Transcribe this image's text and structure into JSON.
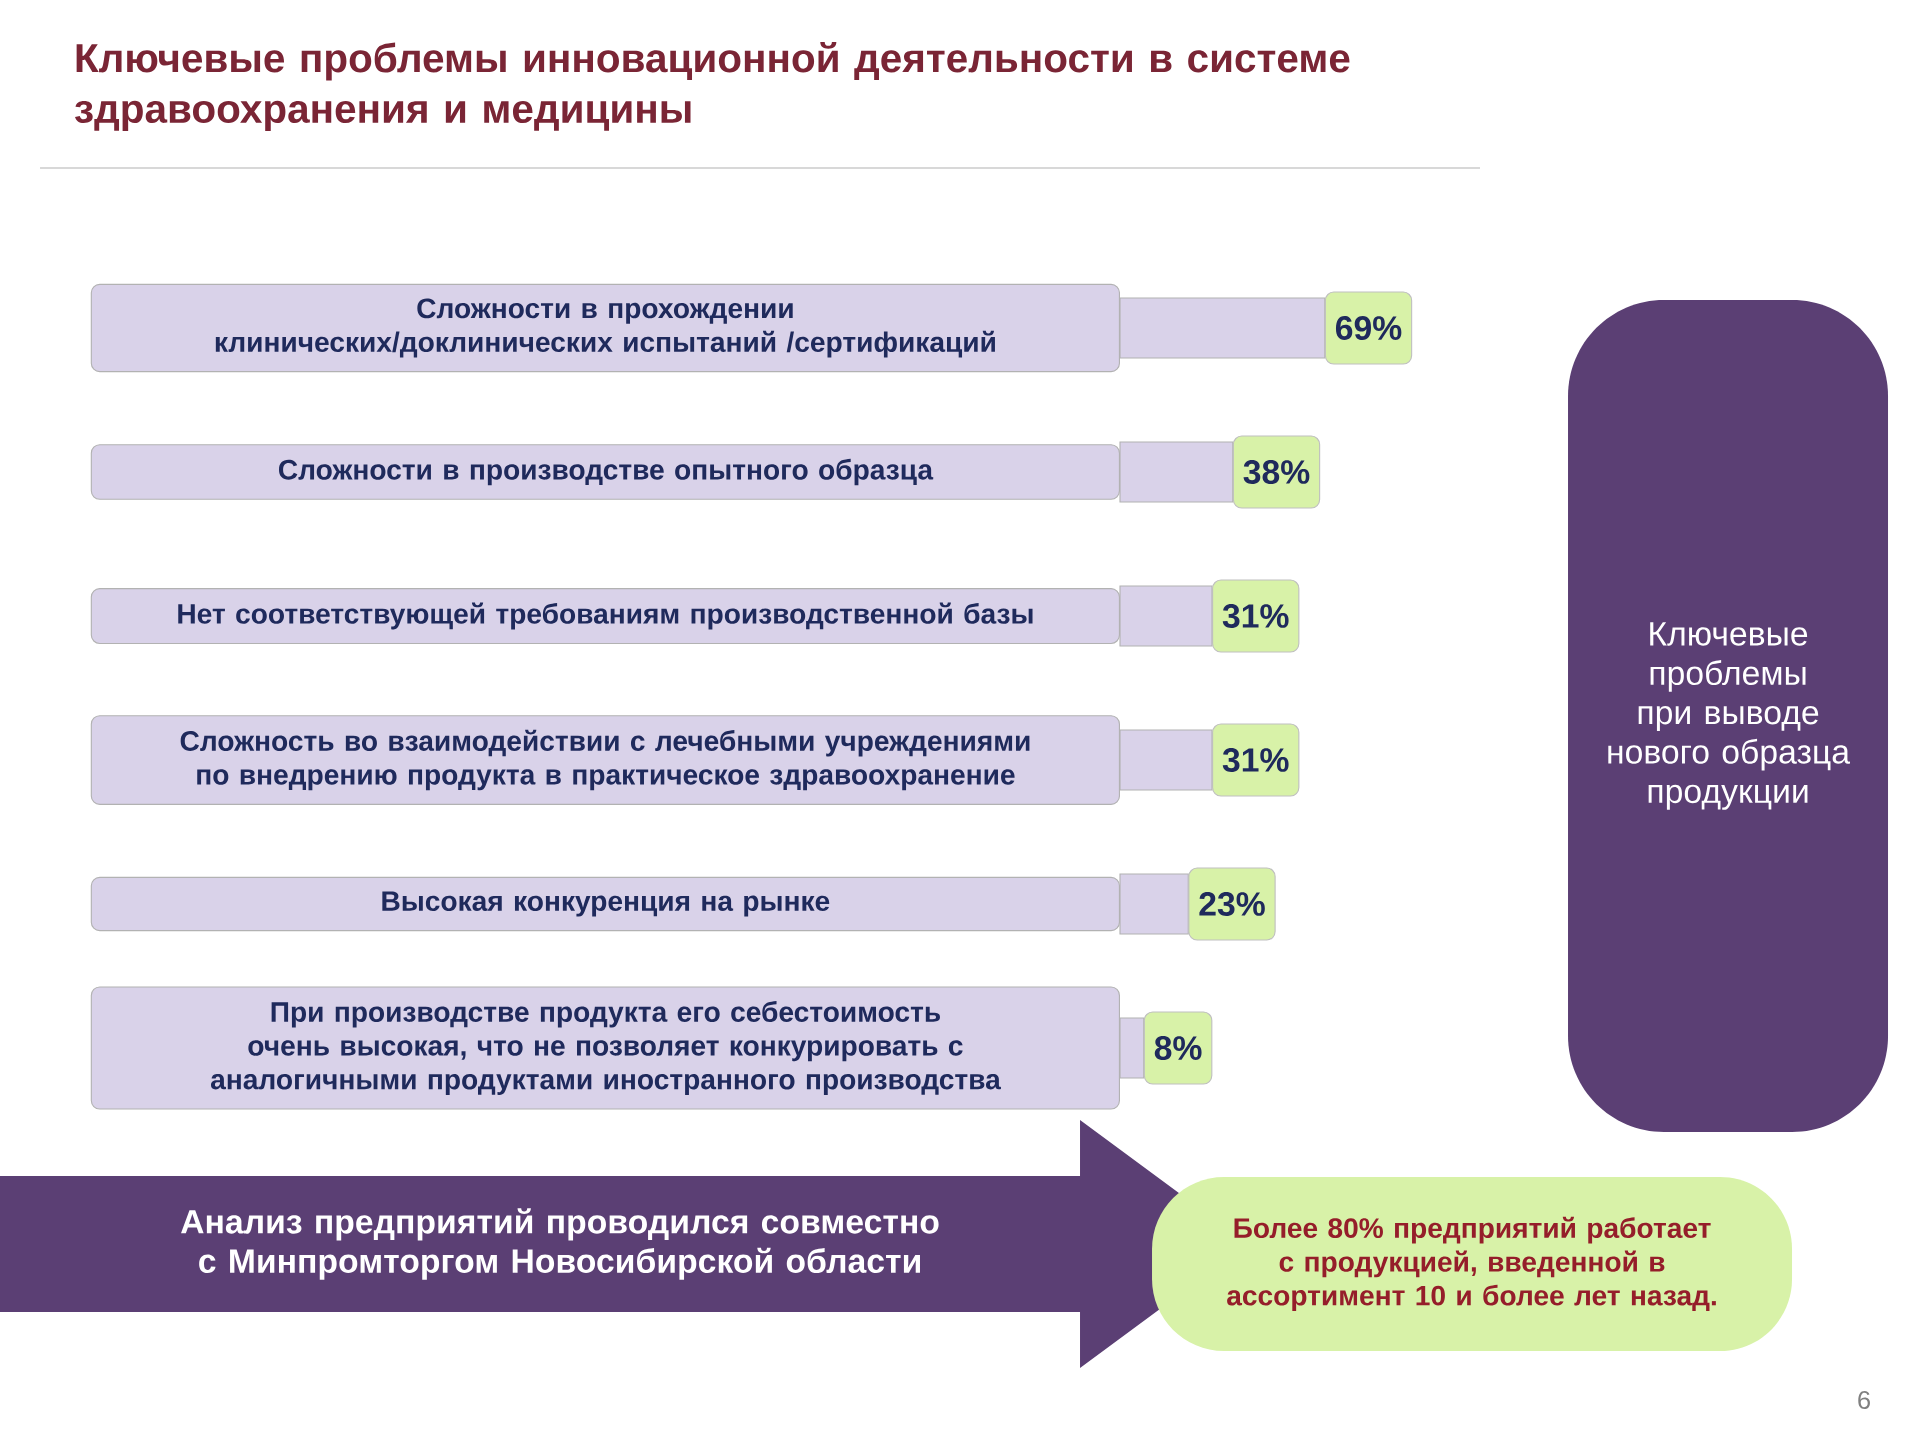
{
  "chart_data": {
    "type": "bar",
    "orientation": "horizontal",
    "title": "Ключевые проблемы инновационной деятельности в системе здравоохранения и медицины",
    "categories": [
      "Сложности в прохождении клинических/доклинических испытаний /сертификаций",
      "Сложности в производстве опытного образца",
      "Нет соответствующей требованиям производственной базы",
      "Сложность во взаимодействии с лечебными учреждениями по внедрению продукта в практическое здравоохранение",
      "Высокая конкуренция на рынке",
      "При производстве продукта его себестоимость очень высокая, что не позволяет конкурировать с аналогичными продуктами иностранного производства"
    ],
    "values": [
      69,
      38,
      31,
      31,
      23,
      8
    ],
    "value_labels": [
      "69%",
      "38%",
      "31%",
      "31%",
      "23%",
      "8%"
    ],
    "color": "#d9d2e9",
    "tick_labels": "y",
    "annotations": [
      "Ключевые проблемы при выводе нового образца продукции",
      "Анализ предприятий проводился совместно с Минпромторгом Новосибирской области",
      "Более 80% предприятий работает с продукцией, введенной в ассортимент 10 и более лет назад.",
      "6"
    ]
  }
}
